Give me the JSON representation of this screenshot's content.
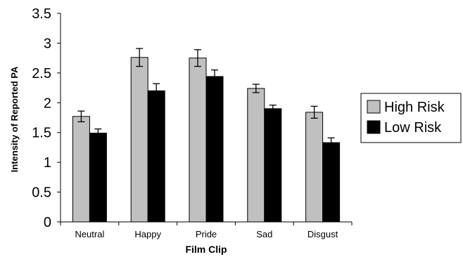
{
  "chart_data": {
    "type": "bar",
    "title": "",
    "xlabel": "Film Clip",
    "ylabel": "Intensity of Reported PA",
    "categories": [
      "Neutral",
      "Happy",
      "Pride",
      "Sad",
      "Disgust"
    ],
    "series": [
      {
        "name": "High Risk",
        "color": "#c0c0c0",
        "values": [
          1.77,
          2.76,
          2.75,
          2.24,
          1.84
        ],
        "error": [
          0.09,
          0.15,
          0.14,
          0.07,
          0.1
        ]
      },
      {
        "name": "Low Risk",
        "color": "#000000",
        "values": [
          1.49,
          2.2,
          2.44,
          1.9,
          1.33
        ],
        "error": [
          0.07,
          0.12,
          0.11,
          0.06,
          0.08
        ]
      }
    ],
    "ylim": [
      0,
      3.5
    ],
    "yticks": [
      "0",
      "0.5",
      "1",
      "1.5",
      "2",
      "2.5",
      "3",
      "3.5"
    ],
    "grid": false,
    "legend_position": "right"
  }
}
